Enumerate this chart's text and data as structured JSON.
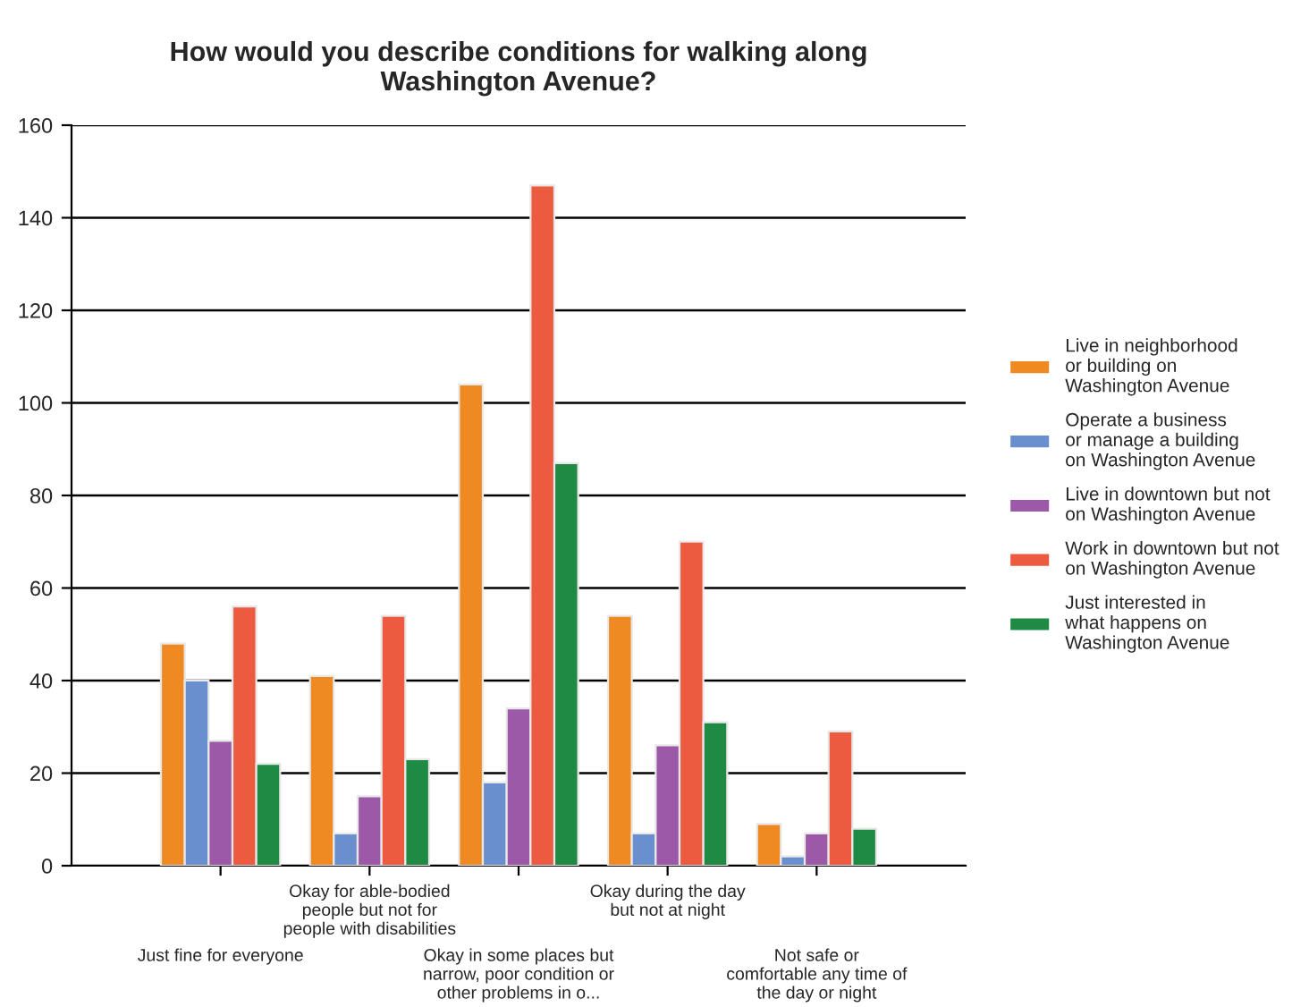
{
  "chart_data": {
    "type": "bar",
    "title": "How would you describe conditions for walking along\nWashington Avenue?",
    "categories": [
      "Just fine for everyone",
      "Okay for able-bodied\npeople but not for\npeople with disabilities",
      "Okay in some places but\nnarrow, poor condition or\nother problems in o...",
      "Okay during the day\nbut not at night",
      "Not safe or\ncomfortable any time of\nthe day or night"
    ],
    "series": [
      {
        "name": "Live in neighborhood\nor building on\nWashington Avenue",
        "color": "#ef8a22",
        "values": [
          48,
          41,
          104,
          54,
          9
        ]
      },
      {
        "name": "Operate a business\nor manage a building\non Washington Avenue",
        "color": "#6a8fcf",
        "values": [
          40,
          7,
          18,
          7,
          2
        ]
      },
      {
        "name": "Live in downtown but not\non Washington Avenue",
        "color": "#9b59a8",
        "values": [
          27,
          15,
          34,
          26,
          7
        ]
      },
      {
        "name": "Work in downtown but not\non Washington Avenue",
        "color": "#ec5a3f",
        "values": [
          56,
          54,
          147,
          70,
          29
        ]
      },
      {
        "name": "Just interested in\nwhat happens on\nWashington Avenue",
        "color": "#1f8a44",
        "values": [
          22,
          23,
          87,
          31,
          8
        ]
      }
    ],
    "ylim": [
      0,
      160
    ],
    "yticks": [
      0,
      20,
      40,
      60,
      80,
      100,
      120,
      140,
      160
    ],
    "grid": "y",
    "legend": "right"
  }
}
